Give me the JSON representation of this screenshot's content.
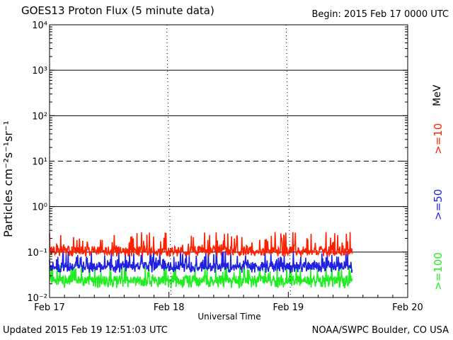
{
  "header": {
    "title": "GOES13 Proton Flux (5 minute data)",
    "begin": "Begin: 2015 Feb 17 0000 UTC"
  },
  "footer": {
    "updated": "Updated 2015 Feb 19 12:51:03 UTC",
    "credit": "NOAA/SWPC Boulder, CO USA"
  },
  "legend": {
    "unit": "MeV"
  },
  "colors": {
    "s10": "#ff2000",
    "s50": "#2020e0",
    "s100": "#20ee20"
  },
  "chart_data": {
    "type": "line",
    "title": "GOES13 Proton Flux (5 minute data)",
    "xlabel": "Universal Time",
    "ylabel": "Particles cm⁻²s⁻¹sr⁻¹",
    "x_ticks": [
      "Feb 17",
      "Feb 18",
      "Feb 19",
      "Feb 20"
    ],
    "x_range": [
      "2015-02-17 00:00",
      "2015-02-20 00:00"
    ],
    "data_end": "2015-02-19 12:50",
    "yscale": "log",
    "ylim": [
      0.01,
      10000
    ],
    "y_tick_labels": [
      "10⁻²",
      "10⁻¹",
      "10⁰",
      "10¹",
      "10²",
      "10³",
      "10⁴"
    ],
    "y_tick_values": [
      0.01,
      0.1,
      1,
      10,
      100,
      1000,
      10000
    ],
    "threshold_line": 10,
    "series": [
      {
        "name": ">=10",
        "color": "#ff2000",
        "typical": 0.11,
        "range": [
          0.08,
          0.28
        ]
      },
      {
        "name": ">=50",
        "color": "#2020e0",
        "typical": 0.05,
        "range": [
          0.035,
          0.12
        ]
      },
      {
        "name": ">=100",
        "color": "#20ee20",
        "typical": 0.025,
        "range": [
          0.016,
          0.06
        ]
      }
    ]
  }
}
